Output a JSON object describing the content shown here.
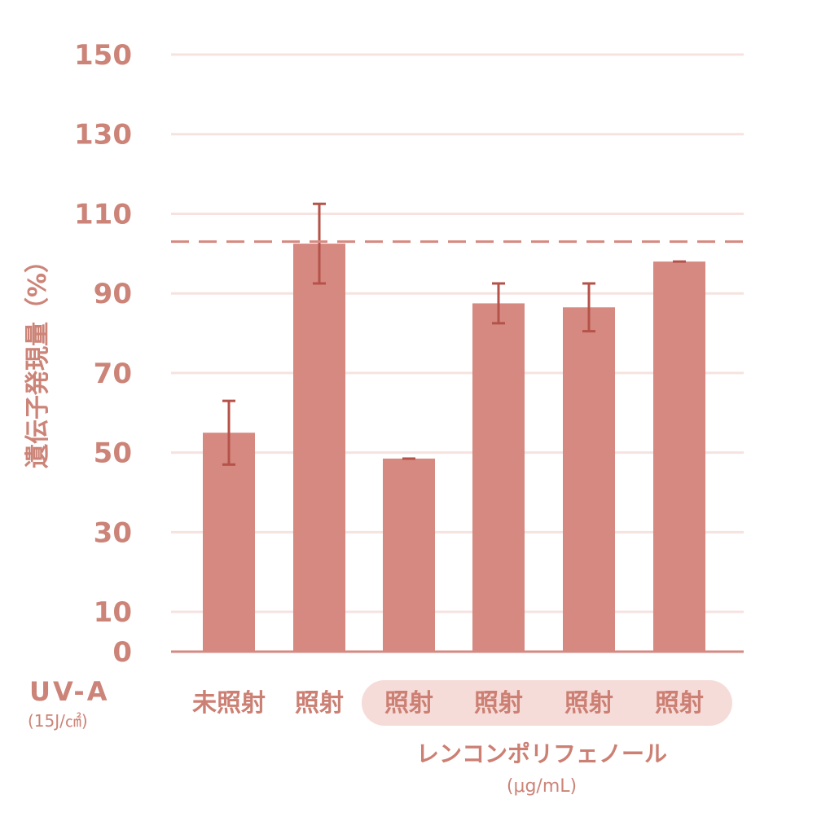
{
  "chart_data": {
    "type": "bar",
    "ylabel": "遺伝子発現量（%）",
    "yticks": [
      0,
      10,
      30,
      50,
      70,
      90,
      110,
      130,
      150
    ],
    "ylim": [
      0,
      150
    ],
    "grid": true,
    "reference_line": 103,
    "categories": [
      "未照射",
      "照射",
      "照射",
      "照射",
      "照射",
      "照射"
    ],
    "values": [
      55,
      102.5,
      48.5,
      87.5,
      86.5,
      98
    ],
    "errors": [
      8,
      10,
      0,
      5,
      6,
      0
    ],
    "row_label": "UV-A",
    "row_sublabel": "(15J/㎠)",
    "group_label": "レンコンポリフェノール",
    "group_sublabel": "(μg/mL)",
    "colors": {
      "bar": "#d68980",
      "error_bar": "#b5524a",
      "axis": "#d68980",
      "grid": "#f6e3e0",
      "reference_line": "#d68980",
      "text": "#cc8478",
      "group_pill": "#f6dcd9"
    }
  }
}
